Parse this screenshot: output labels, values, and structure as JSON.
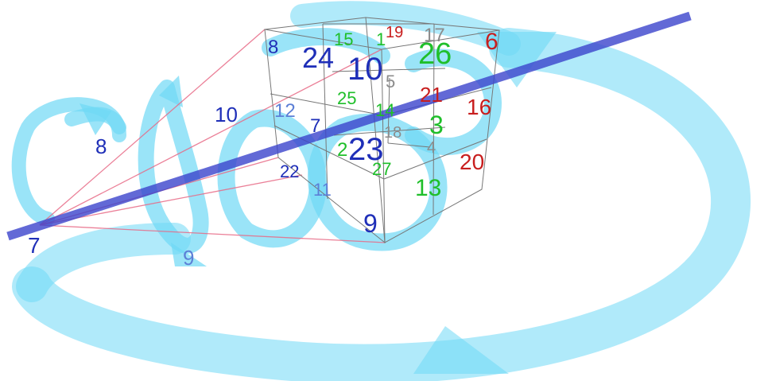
{
  "colors": {
    "blue": "#1f2fb8",
    "light_blue": "#5c7fd6",
    "green": "#1fbf2a",
    "red": "#c81e1e",
    "gray": "#8c8c8c",
    "arrow_cyan": "#6fd8f5",
    "axis_line": "#3b44cc",
    "ray_pink": "#e86a86",
    "cube_edge": "#777777"
  },
  "labels": {
    "n1": "7",
    "n2": "8",
    "n3": "9",
    "n4": "10",
    "c8": "8",
    "c24": "24",
    "c15": "15",
    "c1": "1",
    "c19": "19",
    "c17": "17",
    "c26": "26",
    "c6": "6",
    "c10": "10",
    "c5": "5",
    "c25": "25",
    "c14": "14",
    "c21": "21",
    "c16": "16",
    "c12": "12",
    "c7": "7",
    "c18": "18",
    "c3": "3",
    "c2": "2",
    "c23": "23",
    "c4": "4",
    "c20": "20",
    "c27": "27",
    "c22": "22",
    "c11": "11",
    "c13": "13",
    "c9": "9"
  }
}
